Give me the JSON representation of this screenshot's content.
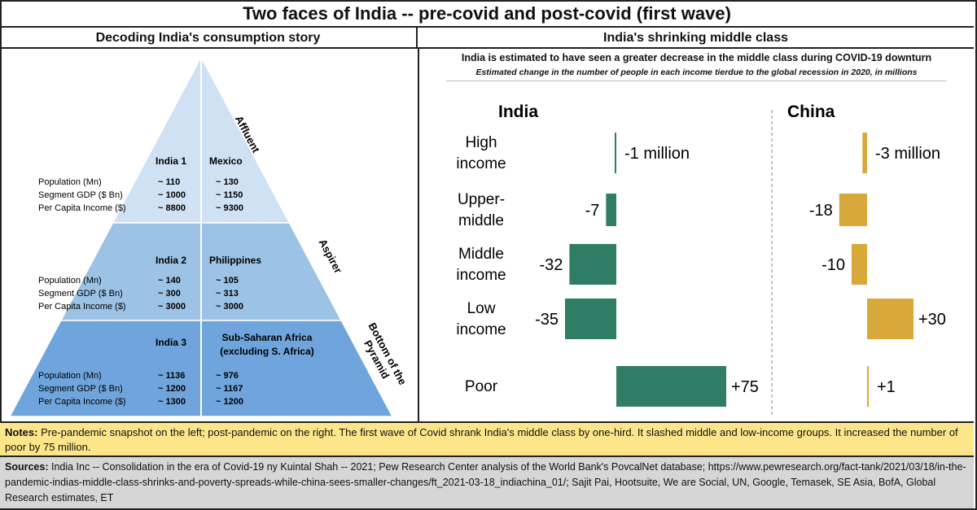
{
  "title": "Two faces of India -- pre-covid and post-covid (first wave)",
  "left_panel": {
    "title": "Decoding India's consumption story",
    "row_labels": [
      "Population (Mn)",
      "Segment GDP ($ Bn)",
      "Per Capita Income ($)"
    ],
    "tiers": [
      {
        "name": "Affluent",
        "india_label": "India 1",
        "india_values": [
          "~ 110",
          "~ 1000",
          "~ 8800"
        ],
        "peer_label": "Mexico",
        "peer_values": [
          "~ 130",
          "~ 1150",
          "~ 9300"
        ],
        "color": "#cfe1f3"
      },
      {
        "name": "Aspirer",
        "india_label": "India 2",
        "india_values": [
          "~ 140",
          "~ 300",
          "~ 3000"
        ],
        "peer_label": "Philippines",
        "peer_values": [
          "~ 105",
          "~ 313",
          "~ 3000"
        ],
        "color": "#9cc2e6"
      },
      {
        "name": "Bottom of the Pyramid",
        "name_lines": [
          "Bottom of the",
          "Pyramid"
        ],
        "india_label": "India 3",
        "india_values": [
          "~ 1136",
          "~ 1200",
          "~ 1300"
        ],
        "peer_label_lines": [
          "Sub-Saharan Africa",
          "(excluding S. Africa)"
        ],
        "peer_values": [
          "~ 976",
          "~ 1167",
          "~ 1200"
        ],
        "color": "#6fa5dc"
      }
    ]
  },
  "right_panel": {
    "title": "India's shrinking middle class",
    "chart_title": "India is estimated to have seen a greater decrease in the middle class during COVID-19 downturn",
    "chart_subtitle": "Estimated change in the number of people in each income tierdue to the global recession  in 2020, in millions"
  },
  "chart_data": {
    "type": "bar",
    "orientation": "horizontal",
    "categories": [
      [
        "High",
        "income"
      ],
      [
        "Upper-",
        "middle"
      ],
      [
        "Middle",
        "income"
      ],
      [
        "Low",
        "income"
      ],
      [
        "Poor"
      ]
    ],
    "series": [
      {
        "name": "India",
        "values": [
          -1,
          -7,
          -32,
          -35,
          75
        ],
        "labels": [
          "-1 million",
          "-7",
          "-32",
          "-35",
          "+75"
        ],
        "color": "#2e7d64"
      },
      {
        "name": "China",
        "values": [
          -3,
          -18,
          -10,
          30,
          1
        ],
        "labels": [
          "-3 million",
          "-18",
          "-10",
          "+30",
          "+1"
        ],
        "color": "#d8a93a"
      }
    ]
  },
  "notes": {
    "label": "Notes:",
    "text": " Pre-pandemic snapshot on the left; post-pandemic on the right.  The first wave of Covid shrank India's middle class by one-hird.  It slashed middle and low-income groups.  It increased the number of poor by 75 million."
  },
  "sources": {
    "label": "Sources:",
    "text": " India Inc -- Consolidation in the era of Covid-19 ny Kuintal Shah -- 2021; Pew Research Center analysis of the World Bank's PovcalNet database; https://www.pewresearch.org/fact-tank/2021/03/18/in-the-pandemic-indias-middle-class-shrinks-and-poverty-spreads-while-china-sees-smaller-changes/ft_2021-03-18_indiachina_01/; Sajit Pai, Hootsuite, We are Social, UN, Google, Temasek, SE Asia, BofA, Global Research estimates, ET"
  }
}
